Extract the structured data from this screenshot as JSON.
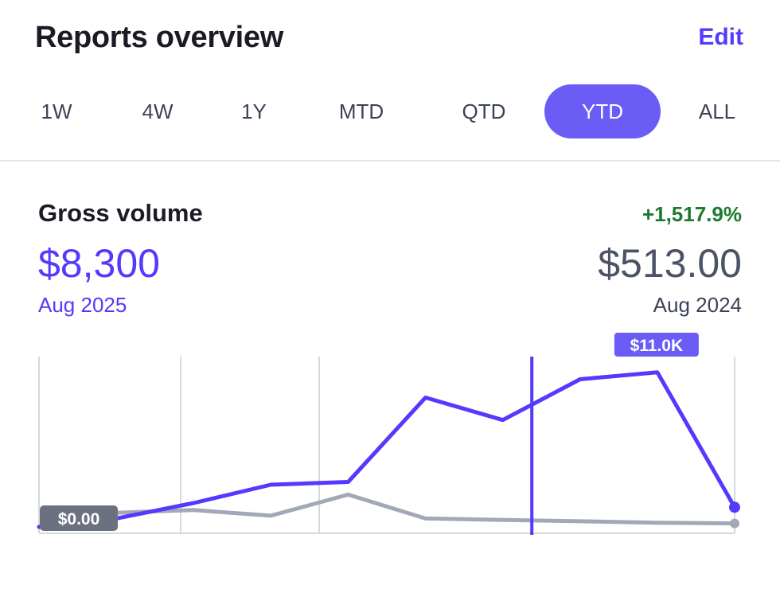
{
  "header": {
    "title": "Reports overview",
    "edit_label": "Edit"
  },
  "tabs": [
    {
      "label": "1W",
      "active": false
    },
    {
      "label": "4W",
      "active": false
    },
    {
      "label": "1Y",
      "active": false
    },
    {
      "label": "MTD",
      "active": false
    },
    {
      "label": "QTD",
      "active": false
    },
    {
      "label": "YTD",
      "active": true
    },
    {
      "label": "ALL",
      "active": false
    }
  ],
  "metric": {
    "label": "Gross volume",
    "change": "+1,517.9%",
    "current_value": "$8,300",
    "current_period": "Aug 2025",
    "compare_value": "$513.00",
    "compare_period": "Aug 2024"
  },
  "colors": {
    "accent": "#533afd",
    "active_tab": "#6b5cf6",
    "compare_line": "#a3a8b8",
    "positive": "#1d7a2e",
    "start_badge": "#6c7180",
    "gridline": "#d5d9e0"
  },
  "chart_data": {
    "type": "line",
    "ylim": [
      0,
      12000
    ],
    "series": [
      {
        "role": "current",
        "values": [
          0,
          600,
          1700,
          3000,
          3200,
          9200,
          7600,
          10500,
          11000,
          1400
        ]
      },
      {
        "role": "comparison",
        "values": [
          0,
          1000,
          1200,
          800,
          2300,
          600,
          500,
          400,
          300,
          250
        ]
      }
    ],
    "peak_label": "$11.0K",
    "peak_index": 8,
    "start_label": "$0.00",
    "cursor_index": 7
  }
}
